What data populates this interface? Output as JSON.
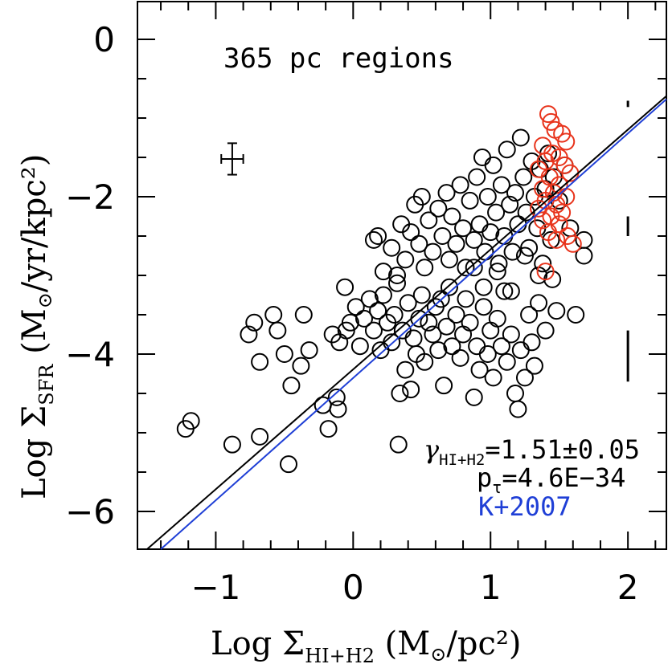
{
  "chart_data": {
    "type": "scatter",
    "title": "365 pc regions",
    "xlabel": {
      "prefix": "Log Σ",
      "sub": "HI+H2",
      "suffix": " (M",
      "sun": "⊙",
      "tail": "/pc²)"
    },
    "ylabel": {
      "prefix": "Log Σ",
      "sub": "SFR",
      "suffix": " (M",
      "sun": "⊙",
      "tail": "/yr/kpc²)"
    },
    "xlim": [
      -1.57,
      2.28
    ],
    "ylim": [
      -6.48,
      0.48
    ],
    "xticks": [
      -1,
      0,
      1,
      2
    ],
    "xtick_labels": [
      "−1",
      "0",
      "1",
      "2"
    ],
    "yticks": [
      0,
      -2,
      -4,
      -6
    ],
    "ytick_labels": [
      "0",
      "−2",
      "−4",
      "−6"
    ],
    "annotations": {
      "gamma_symbol": "γ",
      "gamma_sub": "HI+H2",
      "gamma_value": "=1.51±0.05",
      "p_symbol": "p",
      "p_sub": "τ",
      "p_value": "=4.6E−34",
      "reference": "K+2007"
    },
    "colors": {
      "main": "#000000",
      "highlight": "#e8341c",
      "reference": "#1f3fd6"
    },
    "fit_lines": [
      {
        "color": "#000000",
        "x": [
          -1.5,
          2.28
        ],
        "y": [
          -6.48,
          -0.72
        ]
      },
      {
        "color": "#1f3fd6",
        "x": [
          -1.4,
          2.28
        ],
        "y": [
          -6.48,
          -0.76
        ]
      }
    ],
    "error_bar": {
      "x": -0.88,
      "y": -1.52,
      "xerr": 0.08,
      "yerr": 0.2
    },
    "resolution_bars": [
      {
        "x": 2.0,
        "y": [
          -0.78,
          -0.86
        ]
      },
      {
        "x": 2.0,
        "y": [
          -2.25,
          -2.5
        ]
      },
      {
        "x": 2.0,
        "y": [
          -3.7,
          -4.35
        ]
      }
    ],
    "series": [
      {
        "color": "#000000",
        "points": [
          [
            -1.22,
            -4.95
          ],
          [
            -1.18,
            -4.85
          ],
          [
            -0.88,
            -5.15
          ],
          [
            -0.68,
            -5.05
          ],
          [
            -0.47,
            -5.4
          ],
          [
            -0.22,
            -4.65
          ],
          [
            -0.12,
            -4.55
          ],
          [
            -0.11,
            -4.7
          ],
          [
            -0.18,
            -4.95
          ],
          [
            0.33,
            -5.15
          ],
          [
            -0.76,
            -3.75
          ],
          [
            -0.72,
            -3.6
          ],
          [
            -0.68,
            -4.1
          ],
          [
            -0.58,
            -3.5
          ],
          [
            -0.55,
            -3.7
          ],
          [
            -0.5,
            -4.0
          ],
          [
            -0.45,
            -4.4
          ],
          [
            -0.36,
            -3.5
          ],
          [
            -0.32,
            -3.95
          ],
          [
            -0.38,
            -4.15
          ],
          [
            -0.15,
            -3.75
          ],
          [
            -0.1,
            -3.85
          ],
          [
            -0.05,
            -3.7
          ],
          [
            -0.02,
            -3.6
          ],
          [
            -0.06,
            -3.15
          ],
          [
            0.02,
            -3.4
          ],
          [
            0.05,
            -3.9
          ],
          [
            0.08,
            -3.55
          ],
          [
            0.12,
            -3.3
          ],
          [
            0.15,
            -3.7
          ],
          [
            0.18,
            -3.45
          ],
          [
            0.2,
            -3.95
          ],
          [
            0.22,
            -3.25
          ],
          [
            0.25,
            -3.6
          ],
          [
            0.28,
            -3.85
          ],
          [
            0.3,
            -3.5
          ],
          [
            0.32,
            -3.1
          ],
          [
            0.34,
            -4.5
          ],
          [
            0.36,
            -3.7
          ],
          [
            0.38,
            -4.2
          ],
          [
            0.4,
            -3.35
          ],
          [
            0.42,
            -4.45
          ],
          [
            0.44,
            -3.8
          ],
          [
            0.46,
            -4.0
          ],
          [
            0.48,
            -3.55
          ],
          [
            0.5,
            -3.25
          ],
          [
            0.52,
            -4.1
          ],
          [
            0.55,
            -3.6
          ],
          [
            0.58,
            -3.75
          ],
          [
            0.6,
            -3.4
          ],
          [
            0.62,
            -3.95
          ],
          [
            0.64,
            -3.3
          ],
          [
            0.66,
            -4.4
          ],
          [
            0.68,
            -3.65
          ],
          [
            0.7,
            -3.15
          ],
          [
            0.72,
            -3.9
          ],
          [
            0.75,
            -3.5
          ],
          [
            0.78,
            -4.05
          ],
          [
            0.8,
            -3.75
          ],
          [
            0.82,
            -3.3
          ],
          [
            0.85,
            -3.6
          ],
          [
            0.88,
            -4.55
          ],
          [
            0.9,
            -3.9
          ],
          [
            0.92,
            -4.2
          ],
          [
            0.95,
            -3.4
          ],
          [
            0.98,
            -4.0
          ],
          [
            1.0,
            -3.7
          ],
          [
            1.02,
            -4.3
          ],
          [
            1.05,
            -3.55
          ],
          [
            1.08,
            -3.9
          ],
          [
            1.1,
            -3.2
          ],
          [
            1.12,
            -4.1
          ],
          [
            1.15,
            -3.75
          ],
          [
            1.18,
            -4.5
          ],
          [
            1.2,
            -4.7
          ],
          [
            1.22,
            -3.95
          ],
          [
            1.25,
            -4.3
          ],
          [
            1.28,
            -3.5
          ],
          [
            1.3,
            -3.85
          ],
          [
            1.32,
            -4.15
          ],
          [
            1.35,
            -3.35
          ],
          [
            1.4,
            -3.7
          ],
          [
            1.45,
            -3.05
          ],
          [
            1.48,
            -3.45
          ],
          [
            1.62,
            -3.5
          ],
          [
            0.15,
            -2.55
          ],
          [
            0.18,
            -2.5
          ],
          [
            0.22,
            -2.95
          ],
          [
            0.28,
            -2.65
          ],
          [
            0.32,
            -3.0
          ],
          [
            0.35,
            -2.35
          ],
          [
            0.38,
            -2.8
          ],
          [
            0.42,
            -2.45
          ],
          [
            0.45,
            -2.1
          ],
          [
            0.48,
            -2.6
          ],
          [
            0.5,
            -2.0
          ],
          [
            0.52,
            -2.9
          ],
          [
            0.55,
            -2.3
          ],
          [
            0.58,
            -2.7
          ],
          [
            0.62,
            -2.15
          ],
          [
            0.65,
            -2.5
          ],
          [
            0.68,
            -1.95
          ],
          [
            0.7,
            -2.8
          ],
          [
            0.72,
            -2.25
          ],
          [
            0.75,
            -2.6
          ],
          [
            0.78,
            -1.85
          ],
          [
            0.8,
            -2.4
          ],
          [
            0.82,
            -2.9
          ],
          [
            0.85,
            -2.05
          ],
          [
            0.88,
            -2.55
          ],
          [
            0.9,
            -1.75
          ],
          [
            0.92,
            -2.35
          ],
          [
            0.94,
            -1.5
          ],
          [
            0.96,
            -2.7
          ],
          [
            0.98,
            -2.0
          ],
          [
            1.0,
            -2.45
          ],
          [
            1.02,
            -1.6
          ],
          [
            1.04,
            -2.2
          ],
          [
            1.06,
            -2.85
          ],
          [
            1.08,
            -1.85
          ],
          [
            1.1,
            -2.5
          ],
          [
            1.12,
            -1.4
          ],
          [
            1.14,
            -2.1
          ],
          [
            1.16,
            -2.7
          ],
          [
            1.18,
            -1.95
          ],
          [
            1.2,
            -2.35
          ],
          [
            1.22,
            -1.25
          ],
          [
            1.24,
            -1.75
          ],
          [
            1.26,
            -2.2
          ],
          [
            1.28,
            -2.65
          ],
          [
            1.3,
            -1.55
          ],
          [
            1.32,
            -2.0
          ],
          [
            1.34,
            -2.4
          ],
          [
            1.36,
            -1.65
          ],
          [
            1.38,
            -2.85
          ],
          [
            1.4,
            -1.9
          ],
          [
            1.42,
            -1.45
          ],
          [
            1.44,
            -2.55
          ],
          [
            1.46,
            -1.75
          ],
          [
            1.5,
            -2.05
          ],
          [
            1.54,
            -1.6
          ],
          [
            1.58,
            -2.4
          ],
          [
            1.68,
            -2.55
          ],
          [
            1.68,
            -2.75
          ],
          [
            0.88,
            -2.9
          ],
          [
            0.95,
            -3.15
          ],
          [
            1.05,
            -2.95
          ],
          [
            1.15,
            -3.2
          ],
          [
            1.25,
            -2.75
          ],
          [
            1.35,
            -3.0
          ]
        ]
      },
      {
        "color": "#e8341c",
        "points": [
          [
            1.42,
            -0.95
          ],
          [
            1.44,
            -1.05
          ],
          [
            1.47,
            -1.15
          ],
          [
            1.52,
            -1.2
          ],
          [
            1.55,
            -1.3
          ],
          [
            1.38,
            -1.35
          ],
          [
            1.45,
            -1.45
          ],
          [
            1.5,
            -1.5
          ],
          [
            1.54,
            -1.6
          ],
          [
            1.4,
            -1.55
          ],
          [
            1.35,
            -1.65
          ],
          [
            1.58,
            -1.7
          ],
          [
            1.43,
            -1.75
          ],
          [
            1.5,
            -1.85
          ],
          [
            1.38,
            -1.9
          ],
          [
            1.46,
            -1.95
          ],
          [
            1.55,
            -2.0
          ],
          [
            1.4,
            -2.05
          ],
          [
            1.48,
            -2.1
          ],
          [
            1.35,
            -2.15
          ],
          [
            1.52,
            -2.2
          ],
          [
            1.44,
            -2.25
          ],
          [
            1.38,
            -2.3
          ],
          [
            1.5,
            -2.35
          ],
          [
            1.42,
            -2.45
          ],
          [
            1.56,
            -2.5
          ],
          [
            1.48,
            -2.55
          ],
          [
            1.6,
            -2.6
          ],
          [
            1.4,
            -2.95
          ]
        ]
      }
    ]
  }
}
